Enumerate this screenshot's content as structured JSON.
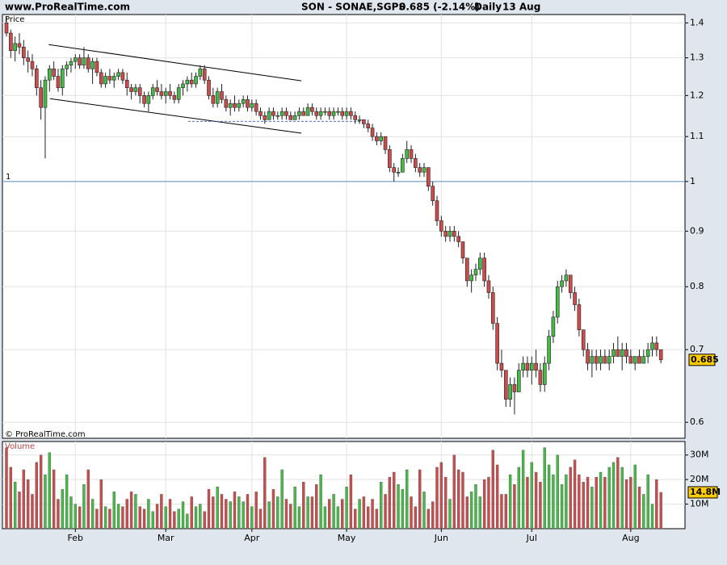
{
  "header": {
    "site": "www.ProRealTime.com",
    "symbol": "SON - SONAE,SGPS",
    "change": "0.685 (-2.14%)",
    "period": "Daily",
    "date": "13 Aug"
  },
  "chart_data": [
    {
      "type": "candlestick",
      "title": "Price",
      "footer": "© ProRealTime.com",
      "categories": [
        null,
        null,
        null,
        null,
        null,
        null,
        null,
        null,
        null,
        null,
        null,
        null,
        null,
        null,
        null,
        null,
        "Feb",
        null,
        null,
        null,
        null,
        null,
        null,
        null,
        null,
        null,
        null,
        null,
        null,
        null,
        null,
        null,
        null,
        null,
        null,
        null,
        null,
        "Mar",
        null,
        null,
        null,
        null,
        null,
        null,
        null,
        null,
        null,
        null,
        null,
        null,
        null,
        null,
        null,
        null,
        null,
        null,
        null,
        "Apr",
        null,
        null,
        null,
        null,
        null,
        null,
        null,
        null,
        null,
        null,
        null,
        null,
        null,
        null,
        null,
        null,
        null,
        null,
        null,
        null,
        null,
        "May",
        null,
        null,
        null,
        null,
        null,
        null,
        null,
        null,
        null,
        null,
        null,
        null,
        null,
        null,
        null,
        null,
        null,
        null,
        null,
        null,
        null,
        "Jun",
        null,
        null,
        null,
        null,
        null,
        null,
        null,
        null,
        null,
        null,
        null,
        null,
        null,
        null,
        null,
        null,
        null,
        null,
        null,
        null,
        "Jul",
        null,
        null,
        null,
        null,
        null,
        null,
        null,
        null,
        null,
        null,
        null,
        null,
        null,
        null,
        null,
        null,
        null,
        null,
        null,
        null,
        null,
        null,
        "Aug",
        null,
        null,
        null,
        null,
        null,
        null,
        null
      ],
      "candles": [
        [
          1.4,
          1.42,
          1.36,
          1.37
        ],
        [
          1.37,
          1.38,
          1.3,
          1.32
        ],
        [
          1.32,
          1.36,
          1.29,
          1.34
        ],
        [
          1.34,
          1.37,
          1.31,
          1.33
        ],
        [
          1.33,
          1.35,
          1.28,
          1.3
        ],
        [
          1.3,
          1.32,
          1.26,
          1.29
        ],
        [
          1.29,
          1.31,
          1.25,
          1.27
        ],
        [
          1.27,
          1.28,
          1.2,
          1.22
        ],
        [
          1.22,
          1.24,
          1.14,
          1.17
        ],
        [
          1.17,
          1.25,
          1.05,
          1.24
        ],
        [
          1.24,
          1.28,
          1.21,
          1.27
        ],
        [
          1.27,
          1.29,
          1.24,
          1.25
        ],
        [
          1.25,
          1.27,
          1.21,
          1.22
        ],
        [
          1.22,
          1.28,
          1.2,
          1.27
        ],
        [
          1.27,
          1.29,
          1.25,
          1.28
        ],
        [
          1.28,
          1.3,
          1.26,
          1.29
        ],
        [
          1.29,
          1.31,
          1.27,
          1.3
        ],
        [
          1.3,
          1.31,
          1.27,
          1.28
        ],
        [
          1.28,
          1.33,
          1.27,
          1.3
        ],
        [
          1.3,
          1.31,
          1.26,
          1.27
        ],
        [
          1.27,
          1.3,
          1.23,
          1.29
        ],
        [
          1.29,
          1.3,
          1.25,
          1.26
        ],
        [
          1.26,
          1.27,
          1.22,
          1.23
        ],
        [
          1.23,
          1.26,
          1.22,
          1.25
        ],
        [
          1.25,
          1.27,
          1.23,
          1.24
        ],
        [
          1.24,
          1.26,
          1.22,
          1.25
        ],
        [
          1.25,
          1.27,
          1.24,
          1.26
        ],
        [
          1.26,
          1.27,
          1.23,
          1.24
        ],
        [
          1.24,
          1.26,
          1.2,
          1.22
        ],
        [
          1.22,
          1.23,
          1.19,
          1.21
        ],
        [
          1.21,
          1.23,
          1.2,
          1.22
        ],
        [
          1.22,
          1.23,
          1.18,
          1.2
        ],
        [
          1.2,
          1.21,
          1.17,
          1.18
        ],
        [
          1.18,
          1.21,
          1.16,
          1.2
        ],
        [
          1.2,
          1.23,
          1.19,
          1.22
        ],
        [
          1.22,
          1.24,
          1.2,
          1.21
        ],
        [
          1.21,
          1.23,
          1.19,
          1.2
        ],
        [
          1.2,
          1.22,
          1.18,
          1.21
        ],
        [
          1.21,
          1.23,
          1.19,
          1.2
        ],
        [
          1.2,
          1.21,
          1.18,
          1.19
        ],
        [
          1.19,
          1.23,
          1.18,
          1.22
        ],
        [
          1.22,
          1.24,
          1.2,
          1.23
        ],
        [
          1.23,
          1.25,
          1.21,
          1.24
        ],
        [
          1.24,
          1.26,
          1.22,
          1.23
        ],
        [
          1.23,
          1.26,
          1.22,
          1.25
        ],
        [
          1.25,
          1.28,
          1.24,
          1.27
        ],
        [
          1.27,
          1.28,
          1.23,
          1.24
        ],
        [
          1.24,
          1.25,
          1.19,
          1.2
        ],
        [
          1.2,
          1.22,
          1.17,
          1.18
        ],
        [
          1.18,
          1.22,
          1.17,
          1.21
        ],
        [
          1.21,
          1.23,
          1.18,
          1.19
        ],
        [
          1.19,
          1.2,
          1.16,
          1.17
        ],
        [
          1.17,
          1.19,
          1.15,
          1.18
        ],
        [
          1.18,
          1.2,
          1.16,
          1.17
        ],
        [
          1.17,
          1.19,
          1.16,
          1.18
        ],
        [
          1.18,
          1.2,
          1.17,
          1.19
        ],
        [
          1.19,
          1.2,
          1.16,
          1.17
        ],
        [
          1.17,
          1.19,
          1.16,
          1.18
        ],
        [
          1.18,
          1.19,
          1.15,
          1.16
        ],
        [
          1.16,
          1.17,
          1.14,
          1.15
        ],
        [
          1.15,
          1.16,
          1.13,
          1.14
        ],
        [
          1.14,
          1.17,
          1.14,
          1.16
        ],
        [
          1.16,
          1.17,
          1.14,
          1.15
        ],
        [
          1.15,
          1.16,
          1.14,
          1.15
        ],
        [
          1.15,
          1.17,
          1.14,
          1.16
        ],
        [
          1.16,
          1.17,
          1.14,
          1.15
        ],
        [
          1.15,
          1.16,
          1.14,
          1.14
        ],
        [
          1.14,
          1.16,
          1.14,
          1.15
        ],
        [
          1.15,
          1.17,
          1.14,
          1.16
        ],
        [
          1.16,
          1.17,
          1.15,
          1.15
        ],
        [
          1.15,
          1.18,
          1.15,
          1.17
        ],
        [
          1.17,
          1.18,
          1.15,
          1.16
        ],
        [
          1.16,
          1.17,
          1.14,
          1.15
        ],
        [
          1.15,
          1.17,
          1.14,
          1.16
        ],
        [
          1.16,
          1.17,
          1.15,
          1.16
        ],
        [
          1.16,
          1.17,
          1.14,
          1.15
        ],
        [
          1.15,
          1.17,
          1.14,
          1.16
        ],
        [
          1.16,
          1.17,
          1.15,
          1.16
        ],
        [
          1.16,
          1.17,
          1.14,
          1.15
        ],
        [
          1.15,
          1.17,
          1.14,
          1.16
        ],
        [
          1.16,
          1.17,
          1.14,
          1.15
        ],
        [
          1.15,
          1.16,
          1.13,
          1.14
        ],
        [
          1.14,
          1.15,
          1.13,
          1.14
        ],
        [
          1.14,
          1.14,
          1.12,
          1.13
        ],
        [
          1.13,
          1.14,
          1.11,
          1.12
        ],
        [
          1.12,
          1.13,
          1.09,
          1.1
        ],
        [
          1.1,
          1.11,
          1.08,
          1.09
        ],
        [
          1.09,
          1.11,
          1.08,
          1.1
        ],
        [
          1.1,
          1.1,
          1.06,
          1.07
        ],
        [
          1.07,
          1.08,
          1.02,
          1.03
        ],
        [
          1.03,
          1.04,
          1.0,
          1.02
        ],
        [
          1.02,
          1.03,
          1.01,
          1.02
        ],
        [
          1.02,
          1.06,
          1.02,
          1.05
        ],
        [
          1.05,
          1.09,
          1.04,
          1.07
        ],
        [
          1.07,
          1.08,
          1.04,
          1.05
        ],
        [
          1.05,
          1.06,
          1.02,
          1.03
        ],
        [
          1.03,
          1.04,
          1.01,
          1.02
        ],
        [
          1.02,
          1.04,
          1.01,
          1.03
        ],
        [
          1.03,
          1.03,
          0.98,
          0.99
        ],
        [
          0.99,
          1.0,
          0.95,
          0.96
        ],
        [
          0.96,
          0.97,
          0.91,
          0.92
        ],
        [
          0.92,
          0.93,
          0.89,
          0.9
        ],
        [
          0.9,
          0.91,
          0.88,
          0.89
        ],
        [
          0.89,
          0.91,
          0.88,
          0.9
        ],
        [
          0.9,
          0.91,
          0.88,
          0.89
        ],
        [
          0.89,
          0.9,
          0.87,
          0.88
        ],
        [
          0.88,
          0.88,
          0.84,
          0.85
        ],
        [
          0.85,
          0.85,
          0.8,
          0.81
        ],
        [
          0.81,
          0.83,
          0.79,
          0.82
        ],
        [
          0.82,
          0.84,
          0.81,
          0.83
        ],
        [
          0.83,
          0.86,
          0.82,
          0.85
        ],
        [
          0.85,
          0.86,
          0.8,
          0.81
        ],
        [
          0.81,
          0.82,
          0.78,
          0.79
        ],
        [
          0.79,
          0.8,
          0.73,
          0.74
        ],
        [
          0.74,
          0.75,
          0.67,
          0.68
        ],
        [
          0.68,
          0.7,
          0.66,
          0.67
        ],
        [
          0.67,
          0.67,
          0.62,
          0.63
        ],
        [
          0.63,
          0.66,
          0.62,
          0.65
        ],
        [
          0.65,
          0.66,
          0.61,
          0.64
        ],
        [
          0.64,
          0.68,
          0.64,
          0.67
        ],
        [
          0.67,
          0.69,
          0.66,
          0.68
        ],
        [
          0.68,
          0.69,
          0.66,
          0.67
        ],
        [
          0.67,
          0.69,
          0.65,
          0.68
        ],
        [
          0.68,
          0.7,
          0.66,
          0.67
        ],
        [
          0.67,
          0.68,
          0.64,
          0.65
        ],
        [
          0.65,
          0.69,
          0.64,
          0.68
        ],
        [
          0.68,
          0.73,
          0.67,
          0.72
        ],
        [
          0.72,
          0.76,
          0.71,
          0.75
        ],
        [
          0.75,
          0.81,
          0.74,
          0.8
        ],
        [
          0.8,
          0.82,
          0.79,
          0.81
        ],
        [
          0.81,
          0.83,
          0.8,
          0.82
        ],
        [
          0.82,
          0.82,
          0.78,
          0.79
        ],
        [
          0.79,
          0.8,
          0.76,
          0.77
        ],
        [
          0.77,
          0.78,
          0.72,
          0.73
        ],
        [
          0.73,
          0.73,
          0.69,
          0.7
        ],
        [
          0.7,
          0.71,
          0.67,
          0.68
        ],
        [
          0.68,
          0.7,
          0.66,
          0.69
        ],
        [
          0.69,
          0.7,
          0.67,
          0.68
        ],
        [
          0.68,
          0.7,
          0.67,
          0.69
        ],
        [
          0.69,
          0.7,
          0.68,
          0.68
        ],
        [
          0.68,
          0.7,
          0.67,
          0.69
        ],
        [
          0.69,
          0.71,
          0.68,
          0.7
        ],
        [
          0.7,
          0.72,
          0.69,
          0.69
        ],
        [
          0.69,
          0.71,
          0.67,
          0.7
        ],
        [
          0.7,
          0.71,
          0.68,
          0.69
        ],
        [
          0.69,
          0.7,
          0.68,
          0.68
        ],
        [
          0.68,
          0.69,
          0.67,
          0.69
        ],
        [
          0.69,
          0.7,
          0.68,
          0.68
        ],
        [
          0.68,
          0.7,
          0.68,
          0.69
        ],
        [
          0.69,
          0.71,
          0.68,
          0.7
        ],
        [
          0.7,
          0.72,
          0.69,
          0.71
        ],
        [
          0.71,
          0.72,
          0.69,
          0.7
        ],
        [
          0.7,
          0.7,
          0.68,
          0.685
        ]
      ],
      "up_color": "#44bb44",
      "down_color": "#cc4c4c",
      "ylim": [
        0.58,
        1.425
      ],
      "yticks": [
        0.6,
        0.7,
        0.8,
        0.9,
        1,
        1.1,
        1.2,
        1.3,
        1.4
      ],
      "log_scale": true,
      "grid": true,
      "reference_line": 1,
      "last_price": 0.685,
      "trendlines": [
        {
          "x": [
            9.8,
            68.5
          ],
          "y": [
            1.337,
            1.238
          ],
          "color": "#000000",
          "dashed": false
        },
        {
          "x": [
            10.1,
            68.5
          ],
          "y": [
            1.192,
            1.108
          ],
          "color": "#000000",
          "dashed": false
        },
        {
          "x": [
            42.2,
            83
          ],
          "y": [
            1.136,
            1.136
          ],
          "color": "#4a6fd0",
          "dashed": true
        }
      ]
    },
    {
      "type": "bar",
      "title": "Volume",
      "values": [
        33,
        25,
        19,
        15,
        24,
        20,
        14,
        27,
        30,
        22,
        31,
        24,
        12,
        16,
        22,
        13,
        10,
        9,
        18,
        24,
        12,
        8,
        20,
        9,
        8,
        15,
        10,
        9,
        12,
        15,
        14,
        9,
        8,
        12,
        7,
        10,
        14,
        9,
        12,
        7,
        8,
        11,
        6,
        13,
        9,
        10,
        7,
        16,
        13,
        17,
        14,
        12,
        11,
        15,
        13,
        11,
        14,
        9,
        15,
        8,
        29,
        11,
        16,
        13,
        24,
        12,
        10,
        17,
        9,
        19,
        13,
        13,
        18,
        22,
        9,
        12,
        14,
        9,
        12,
        17,
        22,
        8,
        12,
        13,
        9,
        12,
        8,
        19,
        14,
        21,
        23,
        18,
        16,
        24,
        13,
        9,
        24,
        15,
        8,
        11,
        25,
        27,
        21,
        12,
        30,
        24,
        23,
        13,
        15,
        18,
        13,
        20,
        21,
        32,
        26,
        14,
        14,
        22,
        18,
        25,
        32,
        21,
        27,
        23,
        19,
        33,
        26,
        22,
        30,
        18,
        22,
        25,
        28,
        22,
        19,
        21,
        17,
        21,
        23,
        21,
        25,
        27,
        29,
        25,
        20,
        21,
        26,
        17,
        14,
        22,
        10,
        20,
        14.8
      ],
      "ylim": [
        0,
        35.5
      ],
      "yticks": [
        {
          "value": 10,
          "label": "10M"
        },
        {
          "value": 20,
          "label": "20M"
        },
        {
          "value": 30,
          "label": "30M"
        }
      ],
      "grid": true,
      "last_value": {
        "value": 14.8,
        "label": "14.8M"
      }
    }
  ]
}
